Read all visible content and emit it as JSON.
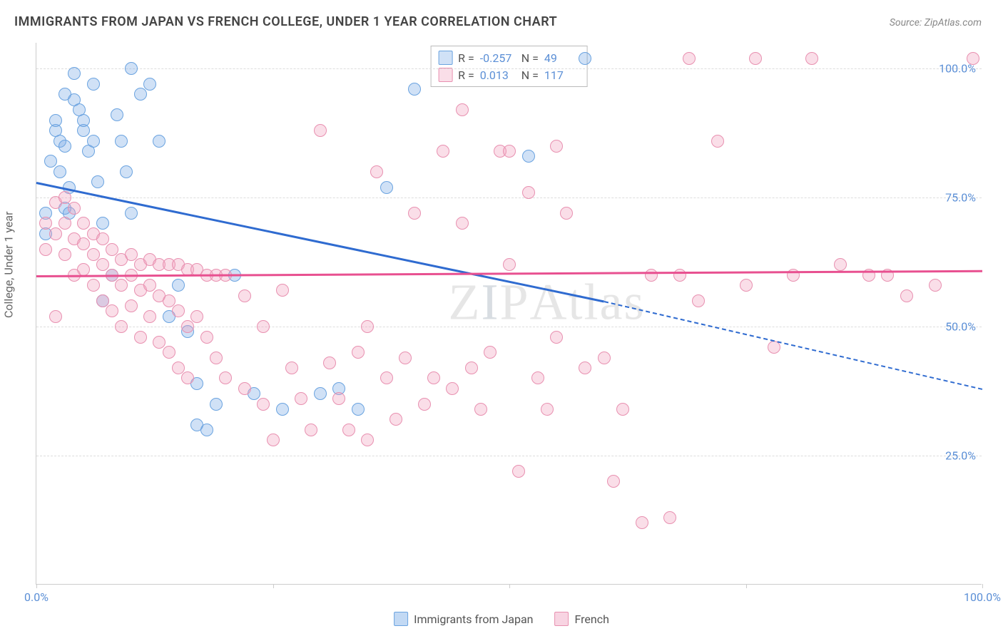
{
  "title": "IMMIGRANTS FROM JAPAN VS FRENCH COLLEGE, UNDER 1 YEAR CORRELATION CHART",
  "source_label": "Source:",
  "source_value": "ZipAtlas.com",
  "y_axis_label": "College, Under 1 year",
  "watermark": "ZIPAtlas",
  "chart": {
    "type": "scatter",
    "xlim": [
      0,
      100
    ],
    "ylim": [
      0,
      105
    ],
    "y_ticks": [
      25,
      50,
      75,
      100
    ],
    "y_tick_labels": [
      "25.0%",
      "50.0%",
      "75.0%",
      "100.0%"
    ],
    "x_ticks": [
      0,
      25,
      50,
      75,
      100
    ],
    "x_tick_labels": [
      "0.0%",
      "",
      "",
      "",
      "100.0%"
    ],
    "background_color": "#ffffff",
    "grid_color": "#dddddd",
    "series": [
      {
        "name": "Immigrants from Japan",
        "color_fill": "rgba(120,170,230,0.35)",
        "color_stroke": "#6aa3e0",
        "marker_radius": 9,
        "R": "-0.257",
        "N": "49",
        "trend": {
          "x1": 0,
          "y1": 78,
          "x2_solid": 60,
          "y2_solid": 55,
          "x2": 100,
          "y2": 38,
          "color": "#2f6bd0"
        },
        "points": [
          [
            1,
            72
          ],
          [
            1,
            68
          ],
          [
            1.5,
            82
          ],
          [
            2,
            88
          ],
          [
            2,
            90
          ],
          [
            2.5,
            86
          ],
          [
            2.5,
            80
          ],
          [
            3,
            85
          ],
          [
            3,
            95
          ],
          [
            3,
            73
          ],
          [
            3.5,
            72
          ],
          [
            3.5,
            77
          ],
          [
            4,
            94
          ],
          [
            4,
            99
          ],
          [
            4.5,
            92
          ],
          [
            5,
            88
          ],
          [
            5,
            90
          ],
          [
            5.5,
            84
          ],
          [
            6,
            97
          ],
          [
            6,
            86
          ],
          [
            6.5,
            78
          ],
          [
            7,
            70
          ],
          [
            7,
            55
          ],
          [
            8,
            60
          ],
          [
            8.5,
            91
          ],
          [
            9,
            86
          ],
          [
            9.5,
            80
          ],
          [
            10,
            100
          ],
          [
            10,
            72
          ],
          [
            11,
            95
          ],
          [
            12,
            97
          ],
          [
            13,
            86
          ],
          [
            14,
            52
          ],
          [
            15,
            58
          ],
          [
            16,
            49
          ],
          [
            17,
            31
          ],
          [
            17,
            39
          ],
          [
            18,
            30
          ],
          [
            19,
            35
          ],
          [
            21,
            60
          ],
          [
            23,
            37
          ],
          [
            26,
            34
          ],
          [
            30,
            37
          ],
          [
            32,
            38
          ],
          [
            34,
            34
          ],
          [
            37,
            77
          ],
          [
            40,
            96
          ],
          [
            52,
            83
          ],
          [
            58,
            102
          ]
        ]
      },
      {
        "name": "French",
        "color_fill": "rgba(240,160,190,0.35)",
        "color_stroke": "#e890b0",
        "marker_radius": 9,
        "R": "0.013",
        "N": "117",
        "trend": {
          "x1": 0,
          "y1": 60,
          "x2_solid": 100,
          "y2_solid": 61,
          "x2": 100,
          "y2": 61,
          "color": "#e85090"
        },
        "points": [
          [
            1,
            70
          ],
          [
            1,
            65
          ],
          [
            2,
            74
          ],
          [
            2,
            68
          ],
          [
            2,
            52
          ],
          [
            3,
            75
          ],
          [
            3,
            70
          ],
          [
            3,
            64
          ],
          [
            4,
            73
          ],
          [
            4,
            67
          ],
          [
            4,
            60
          ],
          [
            5,
            70
          ],
          [
            5,
            66
          ],
          [
            5,
            61
          ],
          [
            6,
            68
          ],
          [
            6,
            64
          ],
          [
            6,
            58
          ],
          [
            7,
            67
          ],
          [
            7,
            62
          ],
          [
            7,
            55
          ],
          [
            8,
            65
          ],
          [
            8,
            60
          ],
          [
            8,
            53
          ],
          [
            9,
            63
          ],
          [
            9,
            58
          ],
          [
            9,
            50
          ],
          [
            10,
            64
          ],
          [
            10,
            60
          ],
          [
            10,
            54
          ],
          [
            11,
            62
          ],
          [
            11,
            57
          ],
          [
            11,
            48
          ],
          [
            12,
            63
          ],
          [
            12,
            58
          ],
          [
            12,
            52
          ],
          [
            13,
            62
          ],
          [
            13,
            56
          ],
          [
            13,
            47
          ],
          [
            14,
            62
          ],
          [
            14,
            55
          ],
          [
            14,
            45
          ],
          [
            15,
            62
          ],
          [
            15,
            53
          ],
          [
            15,
            42
          ],
          [
            16,
            61
          ],
          [
            16,
            50
          ],
          [
            16,
            40
          ],
          [
            17,
            61
          ],
          [
            17,
            52
          ],
          [
            18,
            60
          ],
          [
            18,
            48
          ],
          [
            19,
            60
          ],
          [
            19,
            44
          ],
          [
            20,
            60
          ],
          [
            20,
            40
          ],
          [
            22,
            56
          ],
          [
            22,
            38
          ],
          [
            24,
            50
          ],
          [
            24,
            35
          ],
          [
            25,
            28
          ],
          [
            26,
            57
          ],
          [
            27,
            42
          ],
          [
            28,
            36
          ],
          [
            29,
            30
          ],
          [
            30,
            88
          ],
          [
            31,
            43
          ],
          [
            32,
            36
          ],
          [
            33,
            30
          ],
          [
            34,
            45
          ],
          [
            35,
            50
          ],
          [
            35,
            28
          ],
          [
            36,
            80
          ],
          [
            37,
            40
          ],
          [
            38,
            32
          ],
          [
            39,
            44
          ],
          [
            40,
            72
          ],
          [
            41,
            35
          ],
          [
            42,
            40
          ],
          [
            43,
            84
          ],
          [
            44,
            38
          ],
          [
            45,
            92
          ],
          [
            46,
            42
          ],
          [
            47,
            34
          ],
          [
            48,
            45
          ],
          [
            49,
            84
          ],
          [
            50,
            62
          ],
          [
            51,
            22
          ],
          [
            52,
            76
          ],
          [
            53,
            40
          ],
          [
            54,
            34
          ],
          [
            55,
            48
          ],
          [
            56,
            72
          ],
          [
            58,
            42
          ],
          [
            60,
            44
          ],
          [
            61,
            20
          ],
          [
            62,
            34
          ],
          [
            64,
            12
          ],
          [
            67,
            13
          ],
          [
            68,
            60
          ],
          [
            69,
            102
          ],
          [
            70,
            55
          ],
          [
            72,
            86
          ],
          [
            75,
            58
          ],
          [
            76,
            102
          ],
          [
            78,
            46
          ],
          [
            80,
            60
          ],
          [
            82,
            102
          ],
          [
            85,
            62
          ],
          [
            88,
            60
          ],
          [
            90,
            60
          ],
          [
            92,
            56
          ],
          [
            95,
            58
          ],
          [
            99,
            102
          ],
          [
            65,
            60
          ],
          [
            55,
            85
          ],
          [
            50,
            84
          ],
          [
            45,
            70
          ]
        ]
      }
    ]
  },
  "bottom_legend": [
    {
      "label": "Immigrants from Japan",
      "fill": "rgba(120,170,230,0.45)",
      "stroke": "#6aa3e0"
    },
    {
      "label": "French",
      "fill": "rgba(240,160,190,0.45)",
      "stroke": "#e890b0"
    }
  ]
}
